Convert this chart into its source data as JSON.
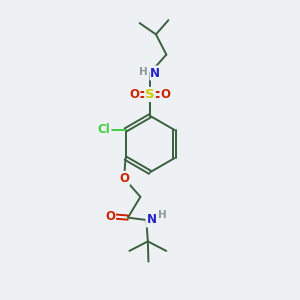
{
  "bg_color": "#edf1f3",
  "bond_color": "#3a6040",
  "bond_width": 1.4,
  "atom_colors": {
    "C": "#3a6040",
    "H": "#8a9a9a",
    "N": "#2222cc",
    "O": "#cc2200",
    "S": "#cccc00",
    "Cl": "#44cc44"
  },
  "font_size": 8.5
}
